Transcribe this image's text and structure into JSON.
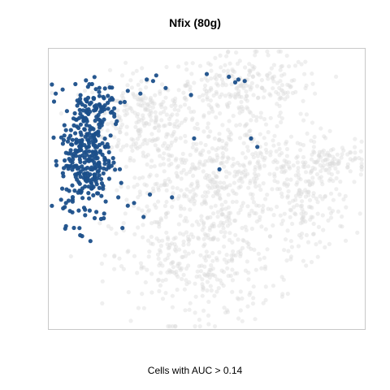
{
  "chart_data": {
    "type": "scatter",
    "title": "Nfix (80g)",
    "caption": "Cells with AUC > 0.14",
    "xlabel": "",
    "ylabel": "",
    "grid": false,
    "legend": "none",
    "colors": {
      "highlight": "#1b4f8a",
      "background": "#dcdcdc",
      "frame": "#c8c8c8"
    },
    "xlim": [
      0,
      100
    ],
    "ylim": [
      0,
      100
    ],
    "series": [
      {
        "role": "background",
        "clusters": [
          {
            "center": [
              30,
              75
            ],
            "spread": [
              9,
              8
            ],
            "n": 260
          },
          {
            "center": [
              62,
              86
            ],
            "spread": [
              12,
              6
            ],
            "n": 240
          },
          {
            "center": [
              52,
              48
            ],
            "spread": [
              10,
              12
            ],
            "n": 260
          },
          {
            "center": [
              46,
              22
            ],
            "spread": [
              13,
              10
            ],
            "n": 280
          },
          {
            "center": [
              82,
              44
            ],
            "spread": [
              6,
              9
            ],
            "n": 160
          },
          {
            "center": [
              90,
              60
            ],
            "spread": [
              6,
              3
            ],
            "n": 90
          },
          {
            "center": [
              65,
              62
            ],
            "spread": [
              10,
              8
            ],
            "n": 160
          },
          {
            "center": [
              34,
              50
            ],
            "spread": [
              7,
              8
            ],
            "n": 90
          }
        ]
      },
      {
        "role": "highlight",
        "clusters": [
          {
            "center": [
              12,
              62
            ],
            "spread": [
              4,
              12
            ],
            "n": 330
          },
          {
            "center": [
              16,
              80
            ],
            "spread": [
              3,
              4
            ],
            "n": 50
          }
        ],
        "points": [
          [
            33,
            88.5
          ],
          [
            34,
            90.5
          ],
          [
            31,
            89
          ],
          [
            25,
            85
          ],
          [
            24,
            81
          ],
          [
            29,
            84
          ],
          [
            37,
            86
          ],
          [
            45,
            83.5
          ],
          [
            50,
            91
          ],
          [
            57,
            90
          ],
          [
            59,
            88
          ],
          [
            60,
            89
          ],
          [
            62,
            88.5
          ],
          [
            54,
            57
          ],
          [
            64,
            68
          ],
          [
            66,
            65
          ],
          [
            46,
            68
          ],
          [
            32,
            48
          ],
          [
            39,
            47
          ],
          [
            30,
            40
          ],
          [
            27,
            45
          ],
          [
            25,
            44
          ],
          [
            22,
            47
          ]
        ]
      }
    ]
  }
}
